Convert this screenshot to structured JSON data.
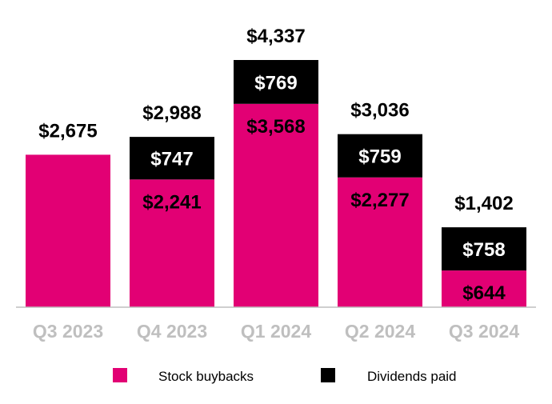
{
  "chart_data": {
    "type": "bar",
    "stacked": true,
    "categories": [
      "Q3 2023",
      "Q4 2023",
      "Q1 2024",
      "Q2 2024",
      "Q3 2024"
    ],
    "series": [
      {
        "name": "Stock buybacks",
        "color": "#E20074",
        "values": [
          2675,
          2241,
          3568,
          2277,
          644
        ],
        "labels": [
          null,
          "$2,241",
          "$3,568",
          "$2,277",
          "$644"
        ]
      },
      {
        "name": "Dividends paid",
        "color": "#000000",
        "values": [
          null,
          747,
          769,
          759,
          758
        ],
        "labels": [
          null,
          "$747",
          "$769",
          "$759",
          "$758"
        ]
      }
    ],
    "totals": [
      2675,
      2988,
      4337,
      3036,
      1402
    ],
    "total_labels": [
      "$2,675",
      "$2,988",
      "$4,337",
      "$3,036",
      "$1,402"
    ],
    "ylim": [
      0,
      4337
    ],
    "grid": false,
    "legend_placement": "bottom",
    "axis_label_color": "#BFBFBF"
  }
}
